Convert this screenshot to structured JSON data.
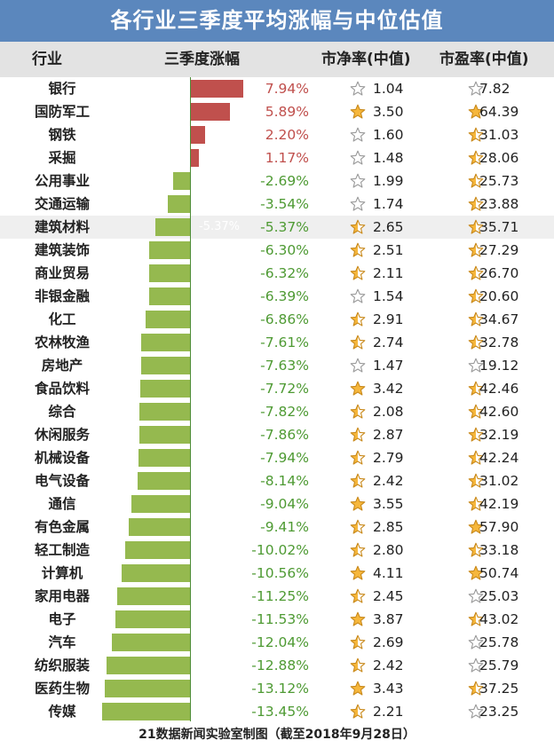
{
  "title": "各行业三季度平均涨幅与中位估值",
  "headers": {
    "industry": "行业",
    "change": "三季度涨幅",
    "pb": "市净率(中值)",
    "pe": "市盈率(中值)"
  },
  "footer": "21数据新闻实验室制图（截至2018年9月28日）",
  "colors": {
    "title_bg": "#5b87bd",
    "positive": "#c0504d",
    "negative_bar": "#95b94f",
    "negative_text": "#4e9a33",
    "star_gold": "#f6b73c",
    "star_outline": "#9a9a9a"
  },
  "highlight_ghost_label": "-5.37%",
  "chart_data": {
    "type": "table",
    "title": "各行业三季度平均涨幅与中位估值",
    "columns": [
      "行业",
      "三季度涨幅",
      "市净率(中值)",
      "市盈率(中值)"
    ],
    "rows": [
      {
        "industry": "银行",
        "change": 7.94,
        "change_label": "7.94%",
        "pb": "1.04",
        "pb_star": 0,
        "pe": "7.82",
        "pe_star": 0
      },
      {
        "industry": "国防军工",
        "change": 5.89,
        "change_label": "5.89%",
        "pb": "3.50",
        "pb_star": 1,
        "pe": "64.39",
        "pe_star": 1
      },
      {
        "industry": "钢铁",
        "change": 2.2,
        "change_label": "2.20%",
        "pb": "1.60",
        "pb_star": 0,
        "pe": "31.03",
        "pe_star": 0.5
      },
      {
        "industry": "采掘",
        "change": 1.17,
        "change_label": "1.17%",
        "pb": "1.48",
        "pb_star": 0,
        "pe": "28.06",
        "pe_star": 0.5
      },
      {
        "industry": "公用事业",
        "change": -2.69,
        "change_label": "-2.69%",
        "pb": "1.99",
        "pb_star": 0,
        "pe": "25.73",
        "pe_star": 0.5
      },
      {
        "industry": "交通运输",
        "change": -3.54,
        "change_label": "-3.54%",
        "pb": "1.74",
        "pb_star": 0,
        "pe": "23.88",
        "pe_star": 0.5
      },
      {
        "industry": "建筑材料",
        "change": -5.37,
        "change_label": "-5.37%",
        "pb": "2.65",
        "pb_star": 0.5,
        "pe": "35.71",
        "pe_star": 0.5,
        "highlight": true
      },
      {
        "industry": "建筑装饰",
        "change": -6.3,
        "change_label": "-6.30%",
        "pb": "2.51",
        "pb_star": 0.5,
        "pe": "27.29",
        "pe_star": 0.5
      },
      {
        "industry": "商业贸易",
        "change": -6.32,
        "change_label": "-6.32%",
        "pb": "2.11",
        "pb_star": 0.5,
        "pe": "26.70",
        "pe_star": 0.5
      },
      {
        "industry": "非银金融",
        "change": -6.39,
        "change_label": "-6.39%",
        "pb": "1.54",
        "pb_star": 0,
        "pe": "20.60",
        "pe_star": 0.5
      },
      {
        "industry": "化工",
        "change": -6.86,
        "change_label": "-6.86%",
        "pb": "2.91",
        "pb_star": 0.5,
        "pe": "34.67",
        "pe_star": 0.5
      },
      {
        "industry": "农林牧渔",
        "change": -7.61,
        "change_label": "-7.61%",
        "pb": "2.74",
        "pb_star": 0.5,
        "pe": "32.78",
        "pe_star": 0.5
      },
      {
        "industry": "房地产",
        "change": -7.63,
        "change_label": "-7.63%",
        "pb": "1.47",
        "pb_star": 0,
        "pe": "19.12",
        "pe_star": 0
      },
      {
        "industry": "食品饮料",
        "change": -7.72,
        "change_label": "-7.72%",
        "pb": "3.42",
        "pb_star": 1,
        "pe": "42.46",
        "pe_star": 0.5
      },
      {
        "industry": "综合",
        "change": -7.82,
        "change_label": "-7.82%",
        "pb": "2.08",
        "pb_star": 0.5,
        "pe": "42.60",
        "pe_star": 0.5
      },
      {
        "industry": "休闲服务",
        "change": -7.86,
        "change_label": "-7.86%",
        "pb": "2.87",
        "pb_star": 0.5,
        "pe": "32.19",
        "pe_star": 0.5
      },
      {
        "industry": "机械设备",
        "change": -7.94,
        "change_label": "-7.94%",
        "pb": "2.79",
        "pb_star": 0.5,
        "pe": "42.24",
        "pe_star": 0.5
      },
      {
        "industry": "电气设备",
        "change": -8.14,
        "change_label": "-8.14%",
        "pb": "2.42",
        "pb_star": 0.5,
        "pe": "31.02",
        "pe_star": 0.5
      },
      {
        "industry": "通信",
        "change": -9.04,
        "change_label": "-9.04%",
        "pb": "3.55",
        "pb_star": 1,
        "pe": "42.19",
        "pe_star": 0.5
      },
      {
        "industry": "有色金属",
        "change": -9.41,
        "change_label": "-9.41%",
        "pb": "2.85",
        "pb_star": 0.5,
        "pe": "57.90",
        "pe_star": 1
      },
      {
        "industry": "轻工制造",
        "change": -10.02,
        "change_label": "-10.02%",
        "pb": "2.80",
        "pb_star": 0.5,
        "pe": "33.18",
        "pe_star": 0.5
      },
      {
        "industry": "计算机",
        "change": -10.56,
        "change_label": "-10.56%",
        "pb": "4.11",
        "pb_star": 1,
        "pe": "50.74",
        "pe_star": 1
      },
      {
        "industry": "家用电器",
        "change": -11.25,
        "change_label": "-11.25%",
        "pb": "2.45",
        "pb_star": 0.5,
        "pe": "25.03",
        "pe_star": 0
      },
      {
        "industry": "电子",
        "change": -11.53,
        "change_label": "-11.53%",
        "pb": "3.87",
        "pb_star": 1,
        "pe": "43.02",
        "pe_star": 0.5
      },
      {
        "industry": "汽车",
        "change": -12.04,
        "change_label": "-12.04%",
        "pb": "2.69",
        "pb_star": 0.5,
        "pe": "25.78",
        "pe_star": 0
      },
      {
        "industry": "纺织服装",
        "change": -12.88,
        "change_label": "-12.88%",
        "pb": "2.42",
        "pb_star": 0.5,
        "pe": "25.79",
        "pe_star": 0
      },
      {
        "industry": "医药生物",
        "change": -13.12,
        "change_label": "-13.12%",
        "pb": "3.43",
        "pb_star": 1,
        "pe": "37.25",
        "pe_star": 0.5
      },
      {
        "industry": "传媒",
        "change": -13.45,
        "change_label": "-13.45%",
        "pb": "2.21",
        "pb_star": 0.5,
        "pe": "23.25",
        "pe_star": 0
      }
    ]
  }
}
